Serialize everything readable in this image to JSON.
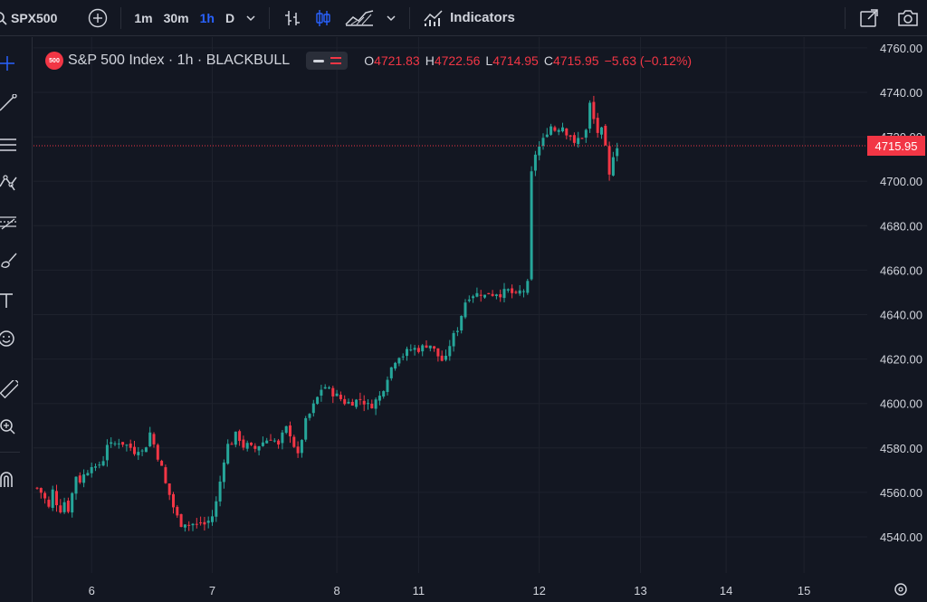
{
  "toolbar": {
    "symbol": "SPX500",
    "intervals": [
      {
        "label": "1m",
        "active": false
      },
      {
        "label": "30m",
        "active": false
      },
      {
        "label": "1h",
        "active": true
      },
      {
        "label": "D",
        "active": false
      }
    ],
    "indicators_label": "Indicators",
    "icons": [
      "search-icon",
      "add-symbol-icon",
      "chevron-down-icon",
      "bar-style-icon",
      "candles-icon",
      "area-style-icon",
      "chevron-down-icon",
      "indicators-icon",
      "fullscreen-icon",
      "screenshot-icon"
    ]
  },
  "sidebar": {
    "icons": [
      "crosshair-icon",
      "trendline-icon",
      "horizontal-lines-icon",
      "pattern-icon",
      "fib-icon",
      "brush-icon",
      "text-icon",
      "emoji-icon",
      "ruler-icon",
      "zoom-in-icon",
      "magnet-icon"
    ]
  },
  "legend": {
    "badge": "500",
    "title": "S&P 500 Index · 1h · BLACKBULL",
    "o_label": "O",
    "o_value": "4721.83",
    "h_label": "H",
    "h_value": "4722.56",
    "l_label": "L",
    "l_value": "4714.95",
    "c_label": "C",
    "c_value": "4715.95",
    "change": "−5.63 (−0.12%)"
  },
  "colors": {
    "background": "#131722",
    "up": "#26a69a",
    "down": "#f23645",
    "grid": "#1e222d",
    "text": "#d1d4dc",
    "active_interval": "#2962ff"
  },
  "chart_data": {
    "type": "candlestick",
    "symbol": "S&P 500 Index",
    "interval": "1h",
    "source": "BLACKBULL",
    "y_ticks": [
      "4540.00",
      "4560.00",
      "4580.00",
      "4600.00",
      "4620.00",
      "4640.00",
      "4660.00",
      "4680.00",
      "4700.00",
      "4720.00",
      "4740.00",
      "4760.00"
    ],
    "x_ticks": [
      "6",
      "7",
      "8",
      "11",
      "12",
      "13",
      "14",
      "15"
    ],
    "ylim": [
      4530,
      4764
    ],
    "last_price": 4715.95,
    "last_price_label": "4715.95",
    "close_path": [
      4562,
      4560,
      4557,
      4553,
      4561,
      4555,
      4552,
      4556,
      4552,
      4560,
      4568,
      4565,
      4568,
      4570,
      4573,
      4570,
      4573,
      4575,
      4583,
      4581,
      4582,
      4583,
      4582,
      4581,
      4580,
      4578,
      4580,
      4578,
      4582,
      4588,
      4580,
      4575,
      4570,
      4562,
      4558,
      4552,
      4548,
      4545,
      4547,
      4545,
      4546,
      4545,
      4547,
      4545,
      4548,
      4550,
      4558,
      4568,
      4578,
      4583,
      4582,
      4588,
      4582,
      4580,
      4582,
      4579,
      4580,
      4582,
      4583,
      4584,
      4585,
      4582,
      4580,
      4590,
      4588,
      4585,
      4578,
      4575,
      4592,
      4592,
      4598,
      4600,
      4605,
      4608,
      4607,
      4605,
      4604,
      4603,
      4601,
      4600,
      4601,
      4600,
      4603,
      4601,
      4600,
      4598,
      4601,
      4602,
      4605,
      4610,
      4615,
      4618,
      4622,
      4621,
      4623,
      4624,
      4625,
      4624,
      4625,
      4626,
      4627,
      4625,
      4622,
      4620,
      4618,
      4625,
      4630,
      4632,
      4638,
      4645,
      4648,
      4649,
      4649,
      4650,
      4648,
      4650,
      4649,
      4650,
      4649,
      4650,
      4651,
      4650,
      4648,
      4650,
      4652,
      4645,
      4702,
      4712,
      4715,
      4718,
      4722,
      4725,
      4723,
      4724,
      4725,
      4722,
      4721,
      4716,
      4719,
      4720,
      4722,
      4735,
      4728,
      4722,
      4723,
      4715,
      4702,
      4712,
      4716
    ],
    "candle_count": 150,
    "ticks_at_candles": [
      14,
      45,
      77,
      98,
      129,
      155,
      177,
      197
    ]
  }
}
